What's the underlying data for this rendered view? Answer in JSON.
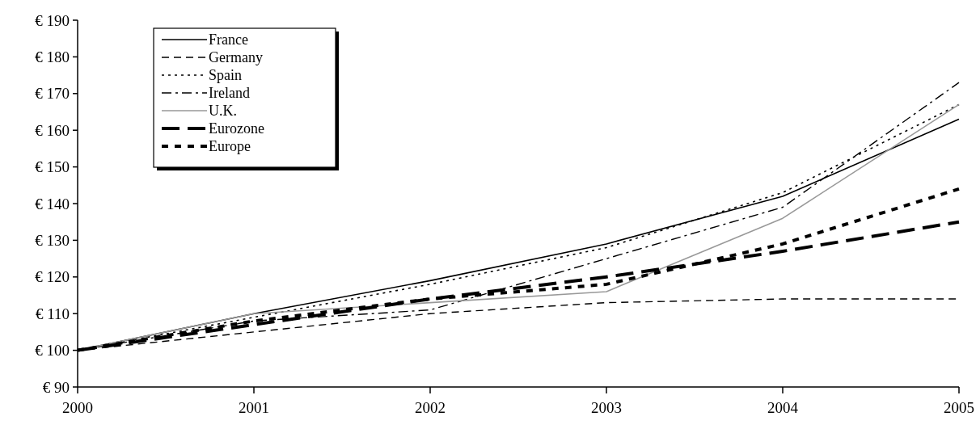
{
  "chart_data": {
    "type": "line",
    "x": [
      2000,
      2001,
      2002,
      2003,
      2004,
      2005
    ],
    "xlim": [
      2000,
      2005
    ],
    "xticks": [
      2000,
      2001,
      2002,
      2003,
      2004,
      2005
    ],
    "ylim": [
      90,
      190
    ],
    "yticks": [
      {
        "value": 90,
        "label": "€ 90"
      },
      {
        "value": 100,
        "label": "€ 100"
      },
      {
        "value": 110,
        "label": "€ 110"
      },
      {
        "value": 120,
        "label": "€ 120"
      },
      {
        "value": 130,
        "label": "€ 130"
      },
      {
        "value": 140,
        "label": "€ 140"
      },
      {
        "value": 150,
        "label": "€ 150"
      },
      {
        "value": 160,
        "label": "€ 160"
      },
      {
        "value": 170,
        "label": "€ 170"
      },
      {
        "value": 180,
        "label": "€ 180"
      },
      {
        "value": 190,
        "label": "€ 190"
      }
    ],
    "grid": false,
    "legend": "top left",
    "marker": "none",
    "series": [
      {
        "name": "France",
        "color": "#000000",
        "line_style": "solid",
        "values": [
          100,
          110,
          119,
          129,
          142,
          163
        ]
      },
      {
        "name": "Germany",
        "color": "#000000",
        "line_style": "dashed",
        "values": [
          100,
          105,
          110,
          113,
          114,
          114
        ]
      },
      {
        "name": "Spain",
        "color": "#000000",
        "line_style": "dotted",
        "values": [
          100,
          109,
          118,
          128,
          143,
          167
        ]
      },
      {
        "name": "Ireland",
        "color": "#000000",
        "line_style": "dashdot",
        "values": [
          100,
          108,
          111,
          125,
          139,
          173
        ]
      },
      {
        "name": "U.K.",
        "color": "#999999",
        "line_style": "solid",
        "values": [
          100,
          110,
          113,
          116,
          136,
          167
        ]
      },
      {
        "name": "Eurozone",
        "color": "#000000",
        "line_style": "longdash",
        "values": [
          100,
          107,
          114,
          120,
          127,
          135
        ]
      },
      {
        "name": "Europe",
        "color": "#000000",
        "line_style": "heavydotted",
        "values": [
          100,
          108,
          114,
          118,
          129,
          144
        ]
      }
    ]
  }
}
